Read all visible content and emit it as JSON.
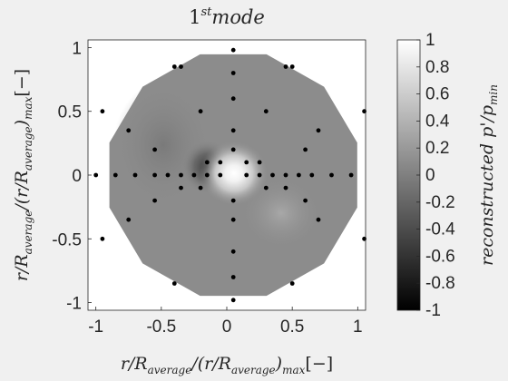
{
  "chart_data": {
    "type": "heatmap",
    "title": "1",
    "title_superscript": "st",
    "title_suffix": "mode",
    "xlabel": "r/R_{average}/(r/R_{average})_{max}[−]",
    "ylabel": "r/R_{average}/(r/R_{average})_{max}[−]",
    "colorbar_label": "reconstructed p'/p_{min}",
    "xlim": [
      -1.06,
      1.06
    ],
    "ylim": [
      -1.06,
      1.06
    ],
    "clim": [
      -1,
      1
    ],
    "x_ticks": [
      -1,
      -0.5,
      0,
      0.5,
      1
    ],
    "x_tick_labels": [
      "-1",
      "-0.5",
      "0",
      "0.5",
      "1"
    ],
    "y_ticks": [
      1,
      0.5,
      0,
      -0.5,
      -1
    ],
    "y_tick_labels": [
      "1",
      "0.5",
      "0",
      "-0.5",
      "-1"
    ],
    "colorbar_ticks": [
      1,
      0.8,
      0.6,
      0.4,
      0.2,
      0,
      -0.2,
      -0.4,
      -0.6,
      -0.8,
      -1
    ],
    "colorbar_tick_labels": [
      "1",
      "0.8",
      "0.6",
      "0.4",
      "0.2",
      "0",
      "-0.2",
      "-0.4",
      "-0.6",
      "-0.8",
      "-1"
    ],
    "colormap": "gray",
    "field": {
      "background_value": 0.1,
      "peak": {
        "x": 0.05,
        "y": 0.0,
        "value": 1.0
      },
      "trough": {
        "x": -0.1,
        "y": 0.0,
        "value": -0.3
      }
    },
    "sensors": {
      "x": [
        0.05,
        -0.35,
        0.45,
        -0.2,
        0.3,
        -0.05,
        0.15,
        -0.15,
        0.25,
        -0.35,
        0.45,
        -0.2,
        0.3,
        0.05,
        -0.05,
        -0.15,
        -0.25,
        -0.35,
        -0.45,
        -0.55,
        -0.7,
        -0.85,
        -1.0,
        0.15,
        0.25,
        0.35,
        0.45,
        0.55,
        0.65,
        0.8,
        0.95,
        0.05,
        0.05,
        0.05,
        0.05,
        0.05,
        0.05,
        0.05,
        0.05,
        -0.75,
        -0.55,
        -0.75,
        -0.55,
        0.7,
        0.6,
        0.7,
        0.6,
        -0.95,
        -0.95,
        1.05,
        1.05,
        -0.4,
        0.5,
        -0.4,
        0.5
      ],
      "y": [
        0.98,
        0.85,
        0.85,
        0.5,
        0.5,
        0.1,
        0.1,
        0.1,
        0.1,
        -0.1,
        -0.1,
        -0.1,
        -0.1,
        -0.98,
        0,
        0,
        0,
        0,
        0,
        0,
        0,
        0,
        0,
        0,
        0,
        0,
        0,
        0,
        0,
        0,
        0,
        0.8,
        0.6,
        0.35,
        0.2,
        -0.2,
        -0.35,
        -0.6,
        -0.8,
        0.35,
        0.2,
        -0.35,
        -0.2,
        0.35,
        0.2,
        -0.35,
        -0.2,
        0.5,
        -0.5,
        0.5,
        -0.5,
        -0.85,
        -0.85,
        0.85,
        0.85
      ]
    }
  }
}
